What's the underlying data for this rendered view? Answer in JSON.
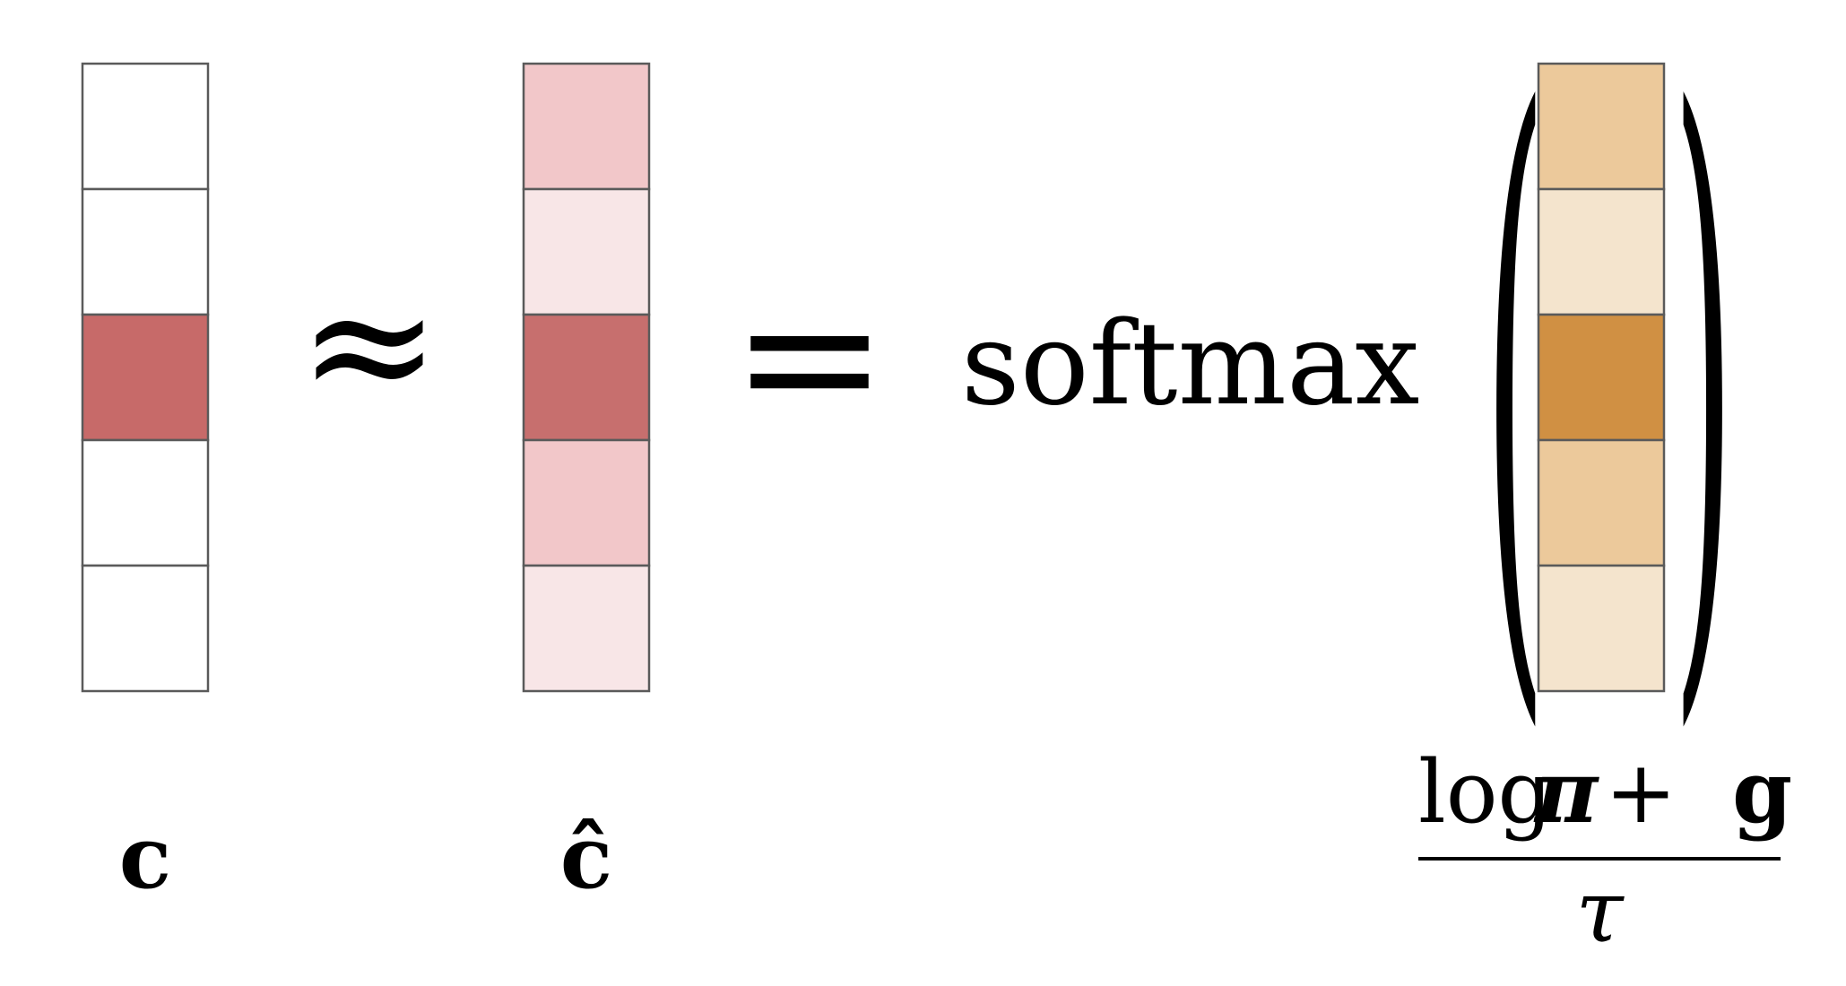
{
  "vectors": [
    {
      "id": "c",
      "label": "c",
      "cells": [
        "#ffffff",
        "#ffffff",
        "#c76a69",
        "#ffffff",
        "#ffffff"
      ]
    },
    {
      "id": "c-hat",
      "label": "ĉ",
      "cells": [
        "#f2c7c9",
        "#f8e6e7",
        "#c76f6e",
        "#f2c7c9",
        "#f8e6e7"
      ]
    },
    {
      "id": "logits",
      "label": "",
      "cells": [
        "#ecc99b",
        "#f4e4cd",
        "#d09043",
        "#ecc99b",
        "#f4e4cd"
      ]
    }
  ],
  "symbols": {
    "approx": "≈",
    "equals": "=",
    "function_name": "softmax",
    "left_paren": "(",
    "right_paren": ")"
  },
  "fraction": {
    "num_log": "log",
    "num_pi": "π",
    "num_plus": "+",
    "num_g": "g",
    "den_tau": "τ"
  },
  "colors": {
    "cell_border": "#5a5a5a",
    "ink": "#000000"
  }
}
